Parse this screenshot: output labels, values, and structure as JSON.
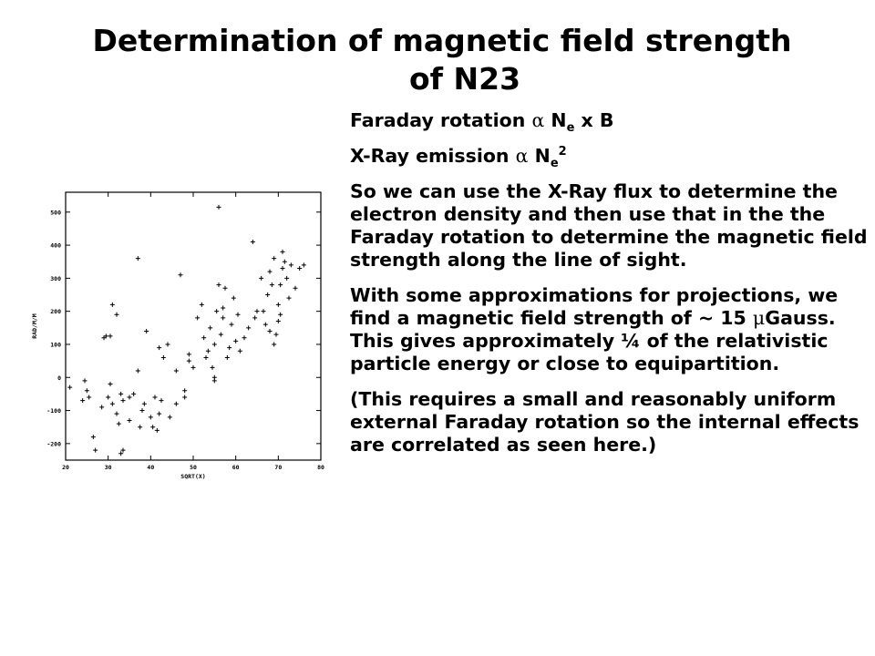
{
  "title": {
    "line1": "Determination of magnetic field strength",
    "line2": "of N23"
  },
  "text": {
    "faraday": {
      "prefix": "Faraday rotation ",
      "alpha": "α",
      "n": " N",
      "sub": "e",
      "suffix": " x B"
    },
    "xray": {
      "prefix": "X-Ray emission ",
      "alpha": "α",
      "n": " N",
      "sub": "e",
      "sup": "2"
    },
    "para1": "So we can use the X-Ray flux to determine the electron density and then use that in the the Faraday rotation to determine the magnetic field strength along the line of sight.",
    "para2": {
      "before": "With some approximations for projections, we find a magnetic field strength of ~ 15 ",
      "mu": "μ",
      "after": "Gauss.  This gives approximately ¼ of the relativistic particle energy or close to equipartition."
    },
    "para3": "(This requires a small and reasonably uniform external Faraday rotation so the internal effects are correlated as seen here.)"
  },
  "chart_data": {
    "type": "scatter",
    "xlabel": "SQRT(X)",
    "ylabel": "RAD/M/M",
    "xlim": [
      20,
      80
    ],
    "ylim": [
      -250,
      560
    ],
    "x_ticks": [
      20,
      30,
      40,
      50,
      60,
      70,
      80
    ],
    "y_ticks": [
      -200,
      -100,
      0,
      100,
      200,
      300,
      400,
      500
    ],
    "marker": "+",
    "points": [
      [
        21,
        -30
      ],
      [
        24,
        -70
      ],
      [
        24.5,
        -10
      ],
      [
        25,
        -40
      ],
      [
        25.5,
        -60
      ],
      [
        26.5,
        -180
      ],
      [
        27,
        -220
      ],
      [
        28.5,
        -90
      ],
      [
        29,
        120
      ],
      [
        29.5,
        125
      ],
      [
        30,
        -60
      ],
      [
        30.5,
        -20
      ],
      [
        30.5,
        125
      ],
      [
        31,
        -80
      ],
      [
        31,
        220
      ],
      [
        32,
        190
      ],
      [
        32,
        -110
      ],
      [
        32.5,
        -140
      ],
      [
        33,
        -50
      ],
      [
        33,
        -230
      ],
      [
        33.5,
        -70
      ],
      [
        33.5,
        -220
      ],
      [
        35,
        -60
      ],
      [
        35,
        -130
      ],
      [
        36,
        -50
      ],
      [
        37,
        20
      ],
      [
        37,
        360
      ],
      [
        37.5,
        -150
      ],
      [
        38,
        -100
      ],
      [
        38.5,
        -80
      ],
      [
        39,
        140
      ],
      [
        40,
        -120
      ],
      [
        40.5,
        -150
      ],
      [
        41,
        -60
      ],
      [
        41.5,
        -160
      ],
      [
        42,
        -110
      ],
      [
        42.5,
        -70
      ],
      [
        42,
        90
      ],
      [
        43,
        60
      ],
      [
        44,
        100
      ],
      [
        44.5,
        -120
      ],
      [
        46,
        -80
      ],
      [
        46,
        20
      ],
      [
        47,
        310
      ],
      [
        48,
        -40
      ],
      [
        48,
        -60
      ],
      [
        49,
        50
      ],
      [
        49,
        70
      ],
      [
        50,
        30
      ],
      [
        51,
        180
      ],
      [
        52,
        220
      ],
      [
        52.5,
        120
      ],
      [
        53,
        60
      ],
      [
        53.5,
        80
      ],
      [
        54,
        150
      ],
      [
        54.5,
        30
      ],
      [
        55,
        -10
      ],
      [
        55,
        0
      ],
      [
        55,
        100
      ],
      [
        55.5,
        200
      ],
      [
        56,
        280
      ],
      [
        56,
        515
      ],
      [
        56.5,
        130
      ],
      [
        57,
        180
      ],
      [
        57,
        210
      ],
      [
        57.5,
        270
      ],
      [
        58,
        60
      ],
      [
        58.5,
        90
      ],
      [
        59,
        160
      ],
      [
        59.5,
        240
      ],
      [
        60,
        110
      ],
      [
        60.5,
        190
      ],
      [
        61,
        80
      ],
      [
        62,
        120
      ],
      [
        63,
        150
      ],
      [
        64,
        410
      ],
      [
        64.5,
        180
      ],
      [
        65,
        200
      ],
      [
        66,
        300
      ],
      [
        67,
        160
      ],
      [
        67.5,
        250
      ],
      [
        68,
        320
      ],
      [
        68.5,
        280
      ],
      [
        69,
        100
      ],
      [
        69.5,
        130
      ],
      [
        70,
        170
      ],
      [
        70,
        220
      ],
      [
        70.5,
        280
      ],
      [
        71,
        330
      ],
      [
        71.5,
        350
      ],
      [
        72,
        300
      ],
      [
        72.5,
        240
      ],
      [
        73,
        340
      ],
      [
        74,
        270
      ],
      [
        75,
        330
      ],
      [
        76,
        340
      ],
      [
        70.5,
        190
      ],
      [
        69,
        360
      ],
      [
        71,
        380
      ],
      [
        68,
        140
      ],
      [
        66.5,
        200
      ]
    ]
  }
}
